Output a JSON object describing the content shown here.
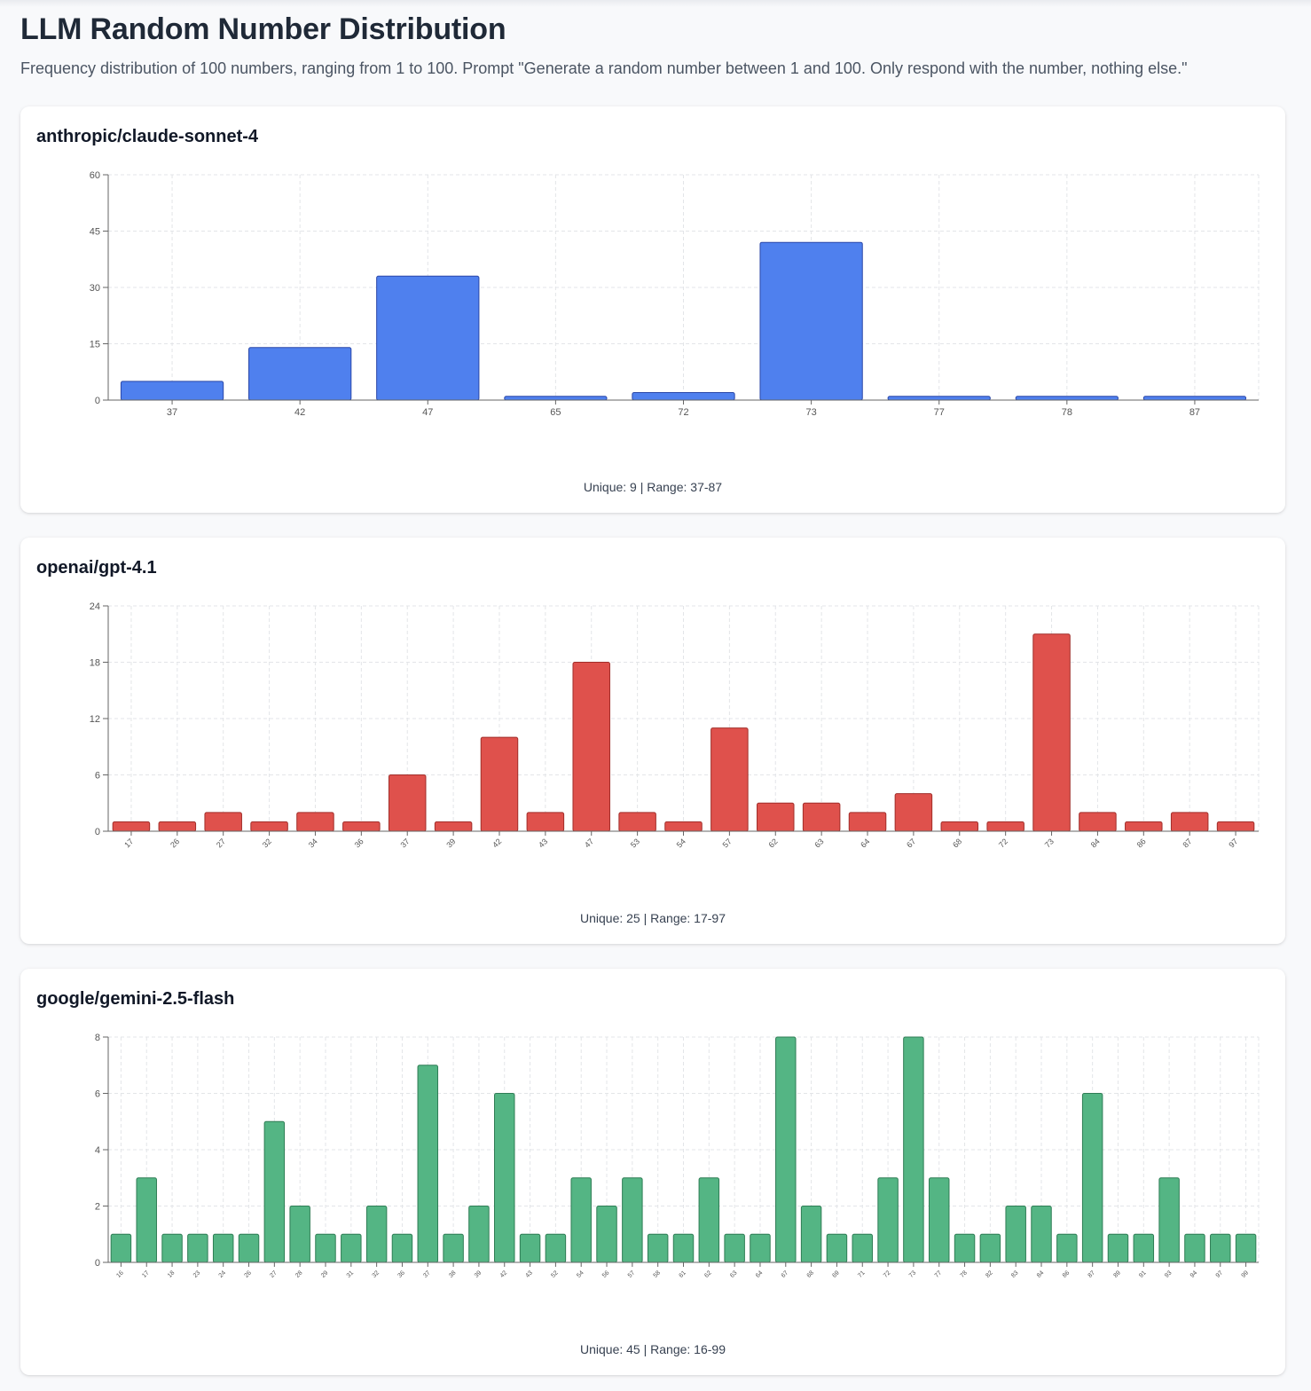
{
  "page": {
    "title": "LLM Random Number Distribution",
    "subtitle": "Frequency distribution of 100 numbers, ranging from 1 to 100. Prompt \"Generate a random number between 1 and 100. Only respond with the number, nothing else.\""
  },
  "chart_data": [
    {
      "type": "bar",
      "title": "anthropic/claude-sonnet-4",
      "categories": [
        "37",
        "42",
        "47",
        "65",
        "72",
        "73",
        "77",
        "78",
        "87"
      ],
      "values": [
        5,
        14,
        33,
        1,
        2,
        42,
        1,
        1,
        1
      ],
      "ylim": [
        0,
        60
      ],
      "yticks": [
        "0",
        "15",
        "30",
        "45",
        "60"
      ],
      "grid": true,
      "color": "#4f80ee",
      "stroke": "#2a47a8",
      "tick_rotation": 0,
      "stats": "Unique: 9 | Range: 37-87"
    },
    {
      "type": "bar",
      "title": "openai/gpt-4.1",
      "categories": [
        "17",
        "26",
        "27",
        "32",
        "34",
        "36",
        "37",
        "39",
        "42",
        "43",
        "47",
        "53",
        "54",
        "57",
        "62",
        "63",
        "64",
        "67",
        "68",
        "72",
        "73",
        "84",
        "86",
        "87",
        "97"
      ],
      "values": [
        1,
        1,
        2,
        1,
        2,
        1,
        6,
        1,
        10,
        2,
        18,
        2,
        1,
        11,
        3,
        3,
        2,
        4,
        1,
        1,
        21,
        2,
        1,
        2,
        1
      ],
      "ylim": [
        0,
        24
      ],
      "yticks": [
        "0",
        "6",
        "12",
        "18",
        "24"
      ],
      "grid": true,
      "color": "#df514c",
      "stroke": "#a12e2a",
      "tick_rotation": -45,
      "stats": "Unique: 25 | Range: 17-97"
    },
    {
      "type": "bar",
      "title": "google/gemini-2.5-flash",
      "categories": [
        "16",
        "17",
        "18",
        "23",
        "24",
        "26",
        "27",
        "28",
        "29",
        "31",
        "32",
        "36",
        "37",
        "38",
        "39",
        "42",
        "43",
        "52",
        "54",
        "56",
        "57",
        "58",
        "61",
        "62",
        "63",
        "64",
        "67",
        "68",
        "69",
        "71",
        "72",
        "73",
        "77",
        "78",
        "82",
        "83",
        "84",
        "86",
        "87",
        "89",
        "91",
        "93",
        "94",
        "97",
        "99"
      ],
      "values": [
        1,
        3,
        1,
        1,
        1,
        1,
        5,
        2,
        1,
        1,
        2,
        1,
        7,
        1,
        2,
        6,
        1,
        1,
        3,
        2,
        3,
        1,
        1,
        3,
        1,
        1,
        8,
        2,
        1,
        1,
        3,
        8,
        3,
        1,
        1,
        2,
        2,
        1,
        6,
        1,
        1,
        3,
        1,
        1,
        1
      ],
      "ylim": [
        0,
        8
      ],
      "yticks": [
        "0",
        "2",
        "4",
        "6",
        "8"
      ],
      "grid": true,
      "color": "#54b584",
      "stroke": "#2f7d55",
      "tick_rotation": -45,
      "stats": "Unique: 45 | Range: 16-99"
    }
  ]
}
